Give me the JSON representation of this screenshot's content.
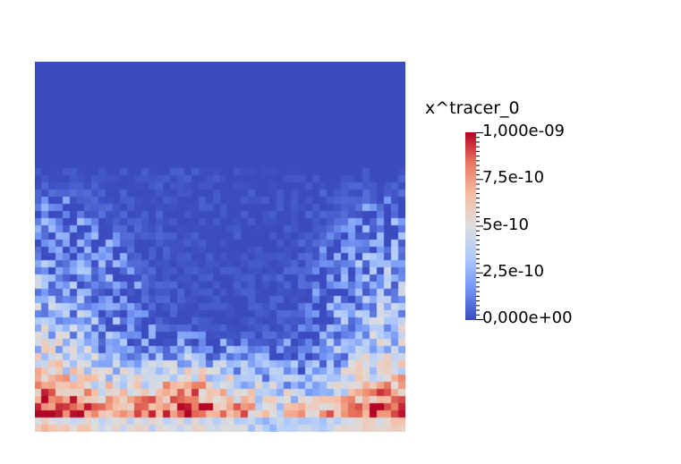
{
  "legend": {
    "title": "x^tracer_0",
    "ticks": [
      "1,000e-09",
      "7,5e-10",
      "5e-10",
      "2,5e-10",
      "0,000e+00"
    ],
    "range": [
      0,
      1e-09
    ],
    "colormap": "cool-to-warm",
    "colormap_stops": [
      "#3b4cc0",
      "#7396f5",
      "#b0cbfc",
      "#dddddd",
      "#f6bfa6",
      "#ea7b60",
      "#b40426"
    ]
  },
  "background_color": "#ffffff"
}
